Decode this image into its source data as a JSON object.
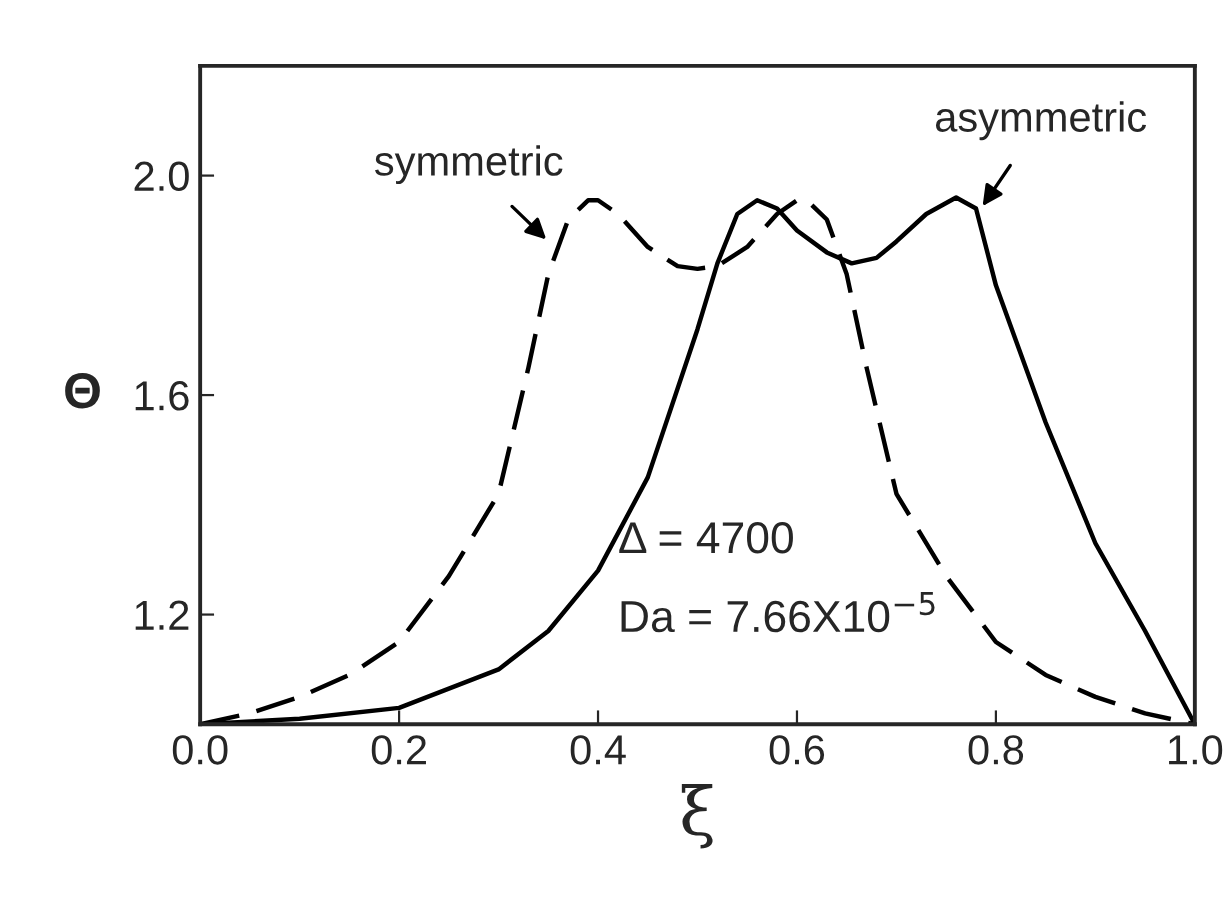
{
  "chart_data": {
    "type": "line",
    "xlabel": "ξ",
    "ylabel": "Θ",
    "xlim": [
      0.0,
      1.0
    ],
    "ylim": [
      1.0,
      2.2
    ],
    "xticks": [
      {
        "value": 0.0,
        "label": "0.0"
      },
      0.2,
      0.4,
      0.6,
      0.8,
      {
        "value": 1.0,
        "label": "1.0"
      }
    ],
    "yticks": [
      1.2,
      1.6,
      {
        "value": 2.0,
        "label": "2.0"
      }
    ],
    "grid": false,
    "legend": false,
    "series": [
      {
        "color": "#000000",
        "line_style": "dashed",
        "x": [
          0,
          0.05,
          0.1,
          0.15,
          0.2,
          0.25,
          0.3,
          0.33,
          0.35,
          0.37,
          0.39,
          0.4,
          0.42,
          0.45,
          0.48,
          0.5,
          0.52,
          0.55,
          0.58,
          0.6,
          0.61,
          0.63,
          0.65,
          0.67,
          0.7,
          0.75,
          0.8,
          0.85,
          0.9,
          0.95,
          1.0
        ],
        "values": [
          1.0,
          1.02,
          1.05,
          1.09,
          1.15,
          1.27,
          1.42,
          1.65,
          1.82,
          1.92,
          1.955,
          1.955,
          1.93,
          1.87,
          1.835,
          1.83,
          1.835,
          1.87,
          1.93,
          1.955,
          1.955,
          1.92,
          1.82,
          1.65,
          1.42,
          1.27,
          1.15,
          1.09,
          1.05,
          1.02,
          1.0
        ]
      },
      {
        "color": "#000000",
        "line_style": "solid",
        "x": [
          0,
          0.1,
          0.2,
          0.3,
          0.35,
          0.4,
          0.45,
          0.5,
          0.52,
          0.54,
          0.56,
          0.58,
          0.6,
          0.63,
          0.655,
          0.68,
          0.7,
          0.73,
          0.76,
          0.78,
          0.8,
          0.82,
          0.85,
          0.9,
          0.95,
          1.0
        ],
        "values": [
          1.0,
          1.01,
          1.03,
          1.1,
          1.17,
          1.28,
          1.45,
          1.72,
          1.84,
          1.93,
          1.955,
          1.94,
          1.9,
          1.86,
          1.84,
          1.85,
          1.88,
          1.93,
          1.96,
          1.94,
          1.8,
          1.7,
          1.55,
          1.33,
          1.17,
          1.0
        ]
      }
    ],
    "annotations": [
      {
        "text": "symmetric",
        "x": 0.35,
        "y": 1.88
      },
      {
        "text": "asymmetric",
        "x": 0.785,
        "y": 1.94
      },
      "Δ = 4700",
      "Da = 7.66X10$^{−5}$"
    ]
  }
}
